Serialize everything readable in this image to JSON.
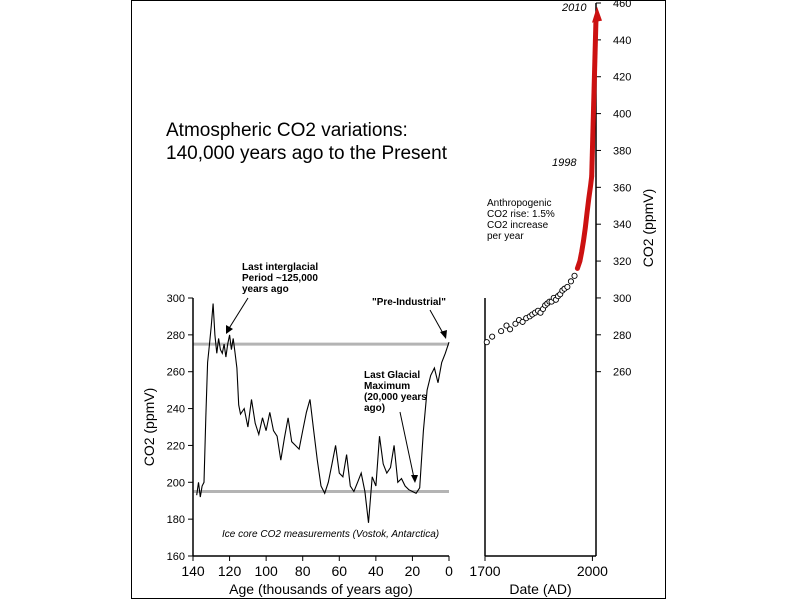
{
  "title_lines": [
    "Atmospheric CO2 variations:",
    "140,000 years ago to the Present"
  ],
  "colors": {
    "axis": "#000000",
    "refline": "#b4b4b4",
    "modern": "#cc1111"
  },
  "chart_data": [
    {
      "type": "line",
      "name": "ice-core",
      "xlabel": "Age (thousands of years ago)",
      "ylabel": "CO2 (ppmV)",
      "xlim": [
        140,
        0
      ],
      "ylim": [
        160,
        300
      ],
      "xticks": [
        140,
        120,
        100,
        80,
        60,
        40,
        20,
        0
      ],
      "yticks": [
        160,
        180,
        200,
        220,
        240,
        260,
        280,
        300
      ],
      "reference_lines": [
        275,
        195
      ],
      "x": [
        138,
        137,
        136,
        135,
        134,
        133,
        132,
        131,
        130,
        129,
        128,
        127,
        126,
        125,
        124,
        123,
        122,
        121,
        120,
        119,
        118,
        117,
        116,
        115,
        114,
        112,
        110,
        108,
        106,
        104,
        102,
        100,
        98,
        96,
        94,
        92,
        90,
        88,
        86,
        84,
        82,
        80,
        78,
        76,
        74,
        72,
        70,
        68,
        66,
        64,
        62,
        60,
        58,
        56,
        54,
        52,
        50,
        48,
        46,
        44,
        42,
        40,
        38,
        36,
        34,
        32,
        30,
        28,
        26,
        24,
        22,
        20,
        18,
        16,
        14,
        12,
        10,
        8,
        6,
        4,
        2,
        0
      ],
      "y": [
        193,
        200,
        192,
        198,
        200,
        235,
        265,
        275,
        285,
        297,
        280,
        270,
        278,
        272,
        270,
        275,
        268,
        275,
        280,
        272,
        278,
        270,
        262,
        242,
        237,
        240,
        230,
        245,
        232,
        226,
        235,
        228,
        238,
        228,
        225,
        212,
        224,
        235,
        222,
        220,
        218,
        228,
        238,
        245,
        228,
        212,
        198,
        194,
        200,
        210,
        220,
        205,
        203,
        215,
        198,
        195,
        200,
        205,
        195,
        178,
        203,
        198,
        225,
        210,
        205,
        208,
        220,
        200,
        202,
        198,
        196,
        195,
        194,
        197,
        228,
        250,
        258,
        262,
        254,
        265,
        270,
        276
      ],
      "annotations": [
        "Last interglacial Period ~125,000 years ago",
        "\"Pre-Industrial\"",
        "Last Glacial Maximum (20,000 years ago)",
        "Ice core CO2 measurements (Vostok, Antarctica)"
      ]
    },
    {
      "type": "scatter",
      "name": "modern-record",
      "xlabel": "Date (AD)",
      "ylabel": "CO2 (ppmV)",
      "xlim": [
        1700,
        2010
      ],
      "ylim": [
        160,
        460
      ],
      "xticks": [
        1700,
        2000
      ],
      "yticks": [
        260,
        280,
        300,
        320,
        340,
        360,
        380,
        400,
        420,
        440,
        460
      ],
      "ice_core_points": {
        "x": [
          1705,
          1720,
          1745,
          1760,
          1770,
          1785,
          1795,
          1805,
          1815,
          1825,
          1832,
          1840,
          1848,
          1855,
          1862,
          1868,
          1874,
          1880,
          1886,
          1892,
          1898,
          1904,
          1910,
          1916,
          1922,
          1930,
          1940,
          1950
        ],
        "y": [
          276,
          279,
          282,
          285,
          283,
          286,
          288,
          287,
          289,
          290,
          291,
          292,
          293,
          292,
          294,
          296,
          297,
          298,
          298,
          300,
          299,
          301,
          302,
          304,
          305,
          306,
          309,
          312
        ]
      },
      "instrumental": {
        "x": [
          1958,
          1965,
          1970,
          1975,
          1980,
          1985,
          1990,
          1995,
          1998
        ],
        "y": [
          316,
          320,
          325,
          331,
          338,
          346,
          354,
          361,
          366
        ]
      },
      "projection": {
        "x": [
          1998,
          2010
        ],
        "y": [
          366,
          458
        ]
      },
      "annotations": [
        "Anthropogenic CO2 rise: 1.5% CO2 increase per year",
        "1998",
        "2010"
      ]
    }
  ]
}
